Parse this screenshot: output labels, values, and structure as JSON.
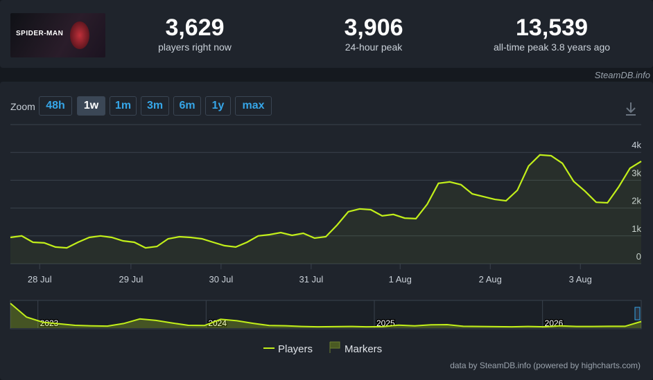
{
  "header": {
    "capsule_text": "SPIDER-MAN",
    "stats": [
      {
        "value": "3,629",
        "label": "players right now"
      },
      {
        "value": "3,906",
        "label": "24-hour peak"
      },
      {
        "value": "13,539",
        "label": "all-time peak 3.8 years ago"
      }
    ],
    "brand": "SteamDB.info"
  },
  "zoom": {
    "label": "Zoom",
    "buttons": [
      "48h",
      "1w",
      "1m",
      "3m",
      "6m",
      "1y",
      "max"
    ],
    "active": 1
  },
  "legend_markers": "Markers",
  "credits": "data by SteamDB.info (powered by highcharts.com)",
  "chart_data": [
    {
      "type": "line",
      "series": [
        {
          "name": "Players",
          "color": "#c2ef1a",
          "values": [
            945,
            1000,
            770,
            750,
            600,
            570,
            770,
            945,
            1000,
            945,
            820,
            770,
            570,
            620,
            895,
            970,
            945,
            895,
            770,
            650,
            600,
            770,
            1000,
            1045,
            1120,
            1020,
            1095,
            920,
            970,
            1390,
            1870,
            1970,
            1940,
            1720,
            1770,
            1640,
            1620,
            2140,
            2890,
            2940,
            2840,
            2510,
            2410,
            2310,
            2260,
            2640,
            3510,
            3910,
            3880,
            3610,
            2960,
            2610,
            2210,
            2190,
            2760,
            3430,
            3680
          ]
        }
      ],
      "xlim": [
        0,
        56
      ],
      "xticks": [
        {
          "value": 2.6,
          "label": "28 Jul"
        },
        {
          "value": 10.7,
          "label": "29 Jul"
        },
        {
          "value": 18.7,
          "label": "30 Jul"
        },
        {
          "value": 26.7,
          "label": "31 Jul"
        },
        {
          "value": 34.6,
          "label": "1 Aug"
        },
        {
          "value": 42.6,
          "label": "2 Aug"
        },
        {
          "value": 50.6,
          "label": "3 Aug"
        }
      ],
      "ylim": [
        0,
        5000
      ],
      "yticks": [
        0,
        {
          "value": 1000,
          "label": "1k"
        },
        {
          "value": 2000,
          "label": "2k"
        },
        {
          "value": 3000,
          "label": "3k"
        },
        {
          "value": 4000,
          "label": "4k"
        }
      ],
      "grid": true
    },
    {
      "type": "area",
      "series": [
        {
          "color": "#c2ef1a",
          "values": [
            13500,
            6000,
            3200,
            2400,
            1500,
            1200,
            1100,
            2500,
            5000,
            4200,
            2800,
            1500,
            1400,
            4800,
            4000,
            2600,
            1400,
            1300,
            900,
            700,
            800,
            900,
            700,
            800,
            1600,
            1200,
            1800,
            1900,
            1000,
            900,
            800,
            700,
            900,
            700,
            1200,
            900,
            900,
            1000,
            1000,
            3600
          ]
        }
      ],
      "xlim": [
        0,
        39
      ],
      "xticks": [
        {
          "value": 1.7,
          "label": "2023"
        },
        {
          "value": 12.1,
          "label": "2024"
        },
        {
          "value": 22.5,
          "label": "2025"
        },
        {
          "value": 32.9,
          "label": "2026"
        }
      ],
      "ylim": [
        0,
        14000
      ]
    }
  ]
}
